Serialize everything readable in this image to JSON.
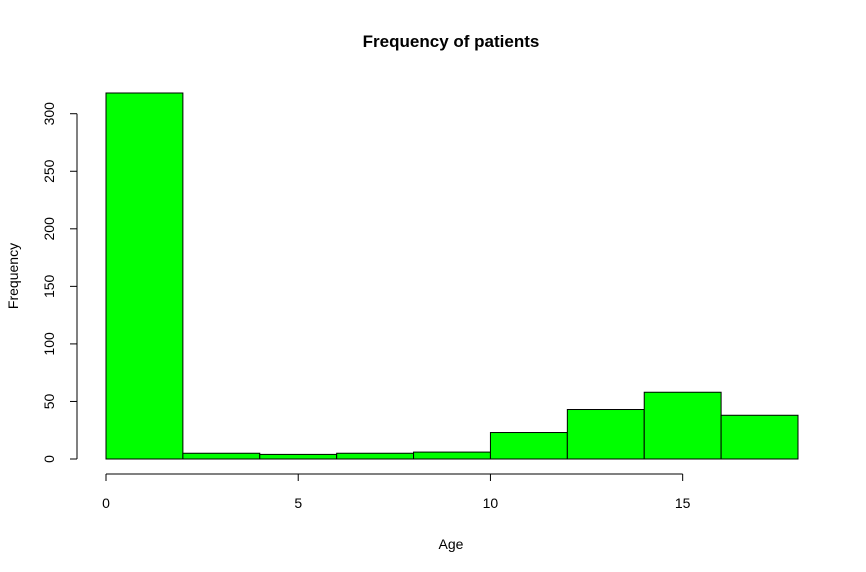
{
  "chart_data": {
    "type": "bar",
    "title": "Frequency of patients",
    "xlabel": "Age",
    "ylabel": "Frequency",
    "bins": [
      {
        "from": 0,
        "to": 2,
        "value": 318
      },
      {
        "from": 2,
        "to": 4,
        "value": 5
      },
      {
        "from": 4,
        "to": 6,
        "value": 4
      },
      {
        "from": 6,
        "to": 8,
        "value": 5
      },
      {
        "from": 8,
        "to": 10,
        "value": 6
      },
      {
        "from": 10,
        "to": 12,
        "value": 23
      },
      {
        "from": 12,
        "to": 14,
        "value": 43
      },
      {
        "from": 14,
        "to": 16,
        "value": 58
      },
      {
        "from": 16,
        "to": 18,
        "value": 38
      }
    ],
    "xlim": [
      0,
      18
    ],
    "ylim": [
      0,
      318
    ],
    "x_ticks": [
      0,
      5,
      10,
      15
    ],
    "y_ticks": [
      0,
      50,
      100,
      150,
      200,
      250,
      300
    ],
    "bar_color": "#00ff00",
    "grid": false
  }
}
